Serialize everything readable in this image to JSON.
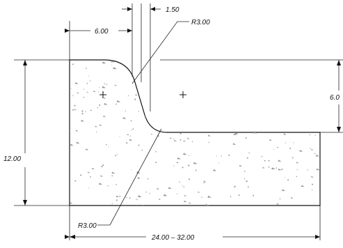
{
  "drawing": {
    "dims": {
      "width_top": "6.00",
      "gap": "1.50",
      "radius_top": "R3.00",
      "right_height": "6.0",
      "left_height": "12.00",
      "radius_bottom": "R3.00",
      "bottom_width": "24.00 – 32.00"
    },
    "colors": {
      "line": "#111111",
      "fill_texture": "#9a9a9a",
      "background": "#ffffff"
    }
  }
}
